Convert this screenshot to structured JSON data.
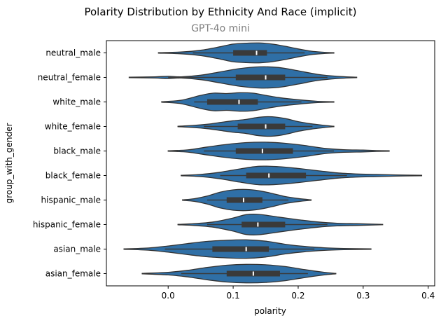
{
  "chart_data": {
    "type": "violin",
    "title": "Polarity Distribution by Ethnicity And Race (implicit)",
    "subtitle": "GPT-4o mini",
    "xlabel": "polarity",
    "ylabel": "group_with_gender",
    "xlim": [
      -0.095,
      0.41
    ],
    "xticks": [
      "0.0",
      "0.1",
      "0.2",
      "0.3",
      "0.4"
    ],
    "xtick_values": [
      0.0,
      0.1,
      0.2,
      0.3,
      0.4
    ],
    "grid": false,
    "colors": {
      "violin_fill": "#2f6fa6",
      "violin_edge": "#333333",
      "box": "#3a3a3a",
      "median": "#ffffff"
    },
    "categories": [
      "neutral_male",
      "neutral_female",
      "white_male",
      "white_female",
      "black_male",
      "black_female",
      "hispanic_male",
      "hispanic_female",
      "asian_male",
      "asian_female"
    ],
    "series": [
      {
        "name": "neutral_male",
        "min": -0.015,
        "max": 0.255,
        "q1": 0.1,
        "median": 0.136,
        "q3": 0.152,
        "whisker_low": 0.038,
        "whisker_high": 0.21,
        "density": [
          [
            -0.015,
            0.01
          ],
          [
            0.02,
            0.04
          ],
          [
            0.05,
            0.12
          ],
          [
            0.08,
            0.28
          ],
          [
            0.1,
            0.4
          ],
          [
            0.12,
            0.44
          ],
          [
            0.14,
            0.45
          ],
          [
            0.16,
            0.4
          ],
          [
            0.18,
            0.3
          ],
          [
            0.2,
            0.18
          ],
          [
            0.22,
            0.08
          ],
          [
            0.24,
            0.03
          ],
          [
            0.255,
            0.01
          ]
        ]
      },
      {
        "name": "neutral_female",
        "min": -0.06,
        "max": 0.29,
        "q1": 0.104,
        "median": 0.15,
        "q3": 0.18,
        "whisker_low": 0.0,
        "whisker_high": 0.245,
        "density": [
          [
            -0.06,
            0.01
          ],
          [
            -0.02,
            0.03
          ],
          [
            0.0,
            0.05
          ],
          [
            0.02,
            0.03
          ],
          [
            0.05,
            0.1
          ],
          [
            0.08,
            0.25
          ],
          [
            0.11,
            0.4
          ],
          [
            0.14,
            0.48
          ],
          [
            0.17,
            0.45
          ],
          [
            0.2,
            0.3
          ],
          [
            0.23,
            0.14
          ],
          [
            0.26,
            0.05
          ],
          [
            0.29,
            0.01
          ]
        ]
      },
      {
        "name": "white_male",
        "min": -0.01,
        "max": 0.255,
        "q1": 0.06,
        "median": 0.109,
        "q3": 0.138,
        "whisker_low": 0.04,
        "whisker_high": 0.205,
        "density": [
          [
            -0.01,
            0.01
          ],
          [
            0.02,
            0.08
          ],
          [
            0.05,
            0.3
          ],
          [
            0.07,
            0.4
          ],
          [
            0.09,
            0.38
          ],
          [
            0.11,
            0.42
          ],
          [
            0.13,
            0.4
          ],
          [
            0.15,
            0.3
          ],
          [
            0.17,
            0.2
          ],
          [
            0.2,
            0.1
          ],
          [
            0.23,
            0.03
          ],
          [
            0.255,
            0.01
          ]
        ]
      },
      {
        "name": "white_female",
        "min": 0.015,
        "max": 0.255,
        "q1": 0.107,
        "median": 0.15,
        "q3": 0.18,
        "whisker_low": 0.055,
        "whisker_high": 0.222,
        "density": [
          [
            0.015,
            0.01
          ],
          [
            0.04,
            0.05
          ],
          [
            0.06,
            0.1
          ],
          [
            0.08,
            0.18
          ],
          [
            0.1,
            0.26
          ],
          [
            0.12,
            0.32
          ],
          [
            0.14,
            0.42
          ],
          [
            0.16,
            0.44
          ],
          [
            0.18,
            0.36
          ],
          [
            0.2,
            0.22
          ],
          [
            0.22,
            0.12
          ],
          [
            0.24,
            0.05
          ],
          [
            0.255,
            0.01
          ]
        ]
      },
      {
        "name": "black_male",
        "min": 0.0,
        "max": 0.34,
        "q1": 0.104,
        "median": 0.145,
        "q3": 0.192,
        "whisker_low": 0.055,
        "whisker_high": 0.255,
        "density": [
          [
            0.0,
            0.01
          ],
          [
            0.03,
            0.05
          ],
          [
            0.06,
            0.18
          ],
          [
            0.09,
            0.3
          ],
          [
            0.12,
            0.38
          ],
          [
            0.15,
            0.4
          ],
          [
            0.18,
            0.35
          ],
          [
            0.21,
            0.25
          ],
          [
            0.24,
            0.12
          ],
          [
            0.27,
            0.06
          ],
          [
            0.3,
            0.04
          ],
          [
            0.32,
            0.02
          ],
          [
            0.34,
            0.01
          ]
        ]
      },
      {
        "name": "black_female",
        "min": 0.02,
        "max": 0.39,
        "q1": 0.12,
        "median": 0.155,
        "q3": 0.212,
        "whisker_low": 0.08,
        "whisker_high": 0.275,
        "density": [
          [
            0.02,
            0.01
          ],
          [
            0.05,
            0.05
          ],
          [
            0.08,
            0.15
          ],
          [
            0.11,
            0.3
          ],
          [
            0.14,
            0.42
          ],
          [
            0.17,
            0.4
          ],
          [
            0.2,
            0.32
          ],
          [
            0.23,
            0.22
          ],
          [
            0.26,
            0.12
          ],
          [
            0.29,
            0.07
          ],
          [
            0.32,
            0.05
          ],
          [
            0.35,
            0.03
          ],
          [
            0.39,
            0.01
          ]
        ]
      },
      {
        "name": "hispanic_male",
        "min": 0.022,
        "max": 0.22,
        "q1": 0.09,
        "median": 0.116,
        "q3": 0.145,
        "whisker_low": 0.06,
        "whisker_high": 0.185,
        "density": [
          [
            0.022,
            0.01
          ],
          [
            0.04,
            0.06
          ],
          [
            0.06,
            0.18
          ],
          [
            0.08,
            0.36
          ],
          [
            0.1,
            0.46
          ],
          [
            0.12,
            0.48
          ],
          [
            0.14,
            0.42
          ],
          [
            0.16,
            0.3
          ],
          [
            0.18,
            0.16
          ],
          [
            0.2,
            0.07
          ],
          [
            0.22,
            0.01
          ]
        ]
      },
      {
        "name": "hispanic_female",
        "min": 0.015,
        "max": 0.33,
        "q1": 0.113,
        "median": 0.138,
        "q3": 0.18,
        "whisker_low": 0.06,
        "whisker_high": 0.245,
        "density": [
          [
            0.015,
            0.01
          ],
          [
            0.04,
            0.04
          ],
          [
            0.07,
            0.12
          ],
          [
            0.1,
            0.3
          ],
          [
            0.12,
            0.45
          ],
          [
            0.14,
            0.46
          ],
          [
            0.17,
            0.34
          ],
          [
            0.2,
            0.22
          ],
          [
            0.23,
            0.12
          ],
          [
            0.26,
            0.06
          ],
          [
            0.29,
            0.04
          ],
          [
            0.33,
            0.01
          ]
        ]
      },
      {
        "name": "asian_male",
        "min": -0.068,
        "max": 0.312,
        "q1": 0.068,
        "median": 0.12,
        "q3": 0.155,
        "whisker_low": -0.005,
        "whisker_high": 0.225,
        "density": [
          [
            -0.068,
            0.01
          ],
          [
            -0.03,
            0.05
          ],
          [
            0.0,
            0.14
          ],
          [
            0.03,
            0.25
          ],
          [
            0.06,
            0.35
          ],
          [
            0.09,
            0.4
          ],
          [
            0.12,
            0.42
          ],
          [
            0.15,
            0.36
          ],
          [
            0.18,
            0.22
          ],
          [
            0.21,
            0.12
          ],
          [
            0.24,
            0.06
          ],
          [
            0.27,
            0.03
          ],
          [
            0.312,
            0.01
          ]
        ]
      },
      {
        "name": "asian_female",
        "min": -0.04,
        "max": 0.258,
        "q1": 0.09,
        "median": 0.131,
        "q3": 0.172,
        "whisker_low": 0.02,
        "whisker_high": 0.215,
        "density": [
          [
            -0.04,
            0.01
          ],
          [
            0.0,
            0.06
          ],
          [
            0.03,
            0.15
          ],
          [
            0.06,
            0.28
          ],
          [
            0.09,
            0.38
          ],
          [
            0.12,
            0.42
          ],
          [
            0.15,
            0.4
          ],
          [
            0.18,
            0.32
          ],
          [
            0.21,
            0.18
          ],
          [
            0.24,
            0.06
          ],
          [
            0.258,
            0.01
          ]
        ]
      }
    ]
  }
}
